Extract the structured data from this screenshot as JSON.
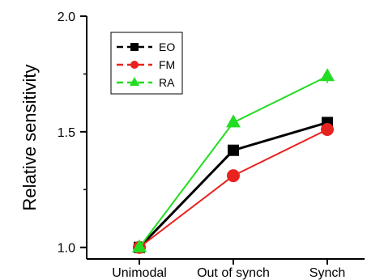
{
  "chart_data": {
    "type": "line",
    "ylabel": "Relative sensitivity",
    "xlabel": "",
    "categories": [
      "Unimodal",
      "Out of synch",
      "Synch"
    ],
    "ylim": [
      0.95,
      2.0
    ],
    "yticks": [
      "1.0",
      "1.5",
      "2.0"
    ],
    "legend_position": "top-left",
    "series": [
      {
        "name": "EO",
        "color": "#000000",
        "marker": "square",
        "values": [
          1.0,
          1.42,
          1.54
        ],
        "errors": [
          0.0,
          0.02,
          0.02
        ]
      },
      {
        "name": "FM",
        "color": "#e8231f",
        "marker": "circle",
        "values": [
          1.0,
          1.31,
          1.51
        ],
        "errors": [
          0.0,
          0.02,
          0.02
        ]
      },
      {
        "name": "RA",
        "color": "#22dd22",
        "marker": "triangle",
        "values": [
          1.0,
          1.54,
          1.74
        ],
        "errors": [
          0.0,
          0.02,
          0.03
        ]
      }
    ]
  }
}
